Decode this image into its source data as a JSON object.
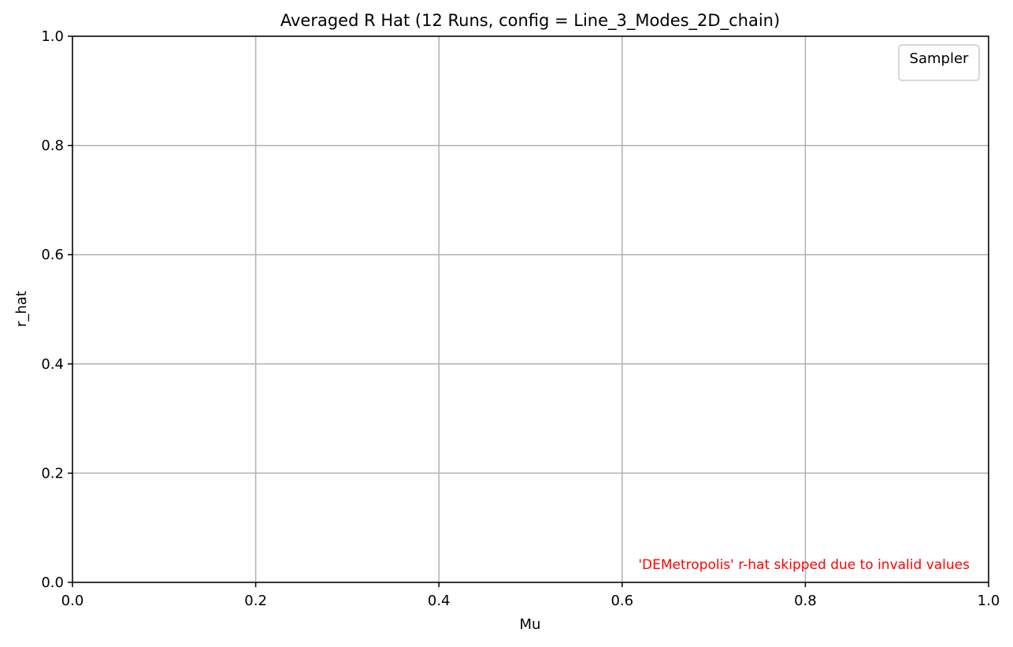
{
  "chart_data": {
    "type": "line",
    "title": "Averaged R Hat (12 Runs, config = Line_3_Modes_2D_chain)",
    "xlabel": "Mu",
    "ylabel": "r_hat",
    "xlim": [
      0.0,
      1.0
    ],
    "ylim": [
      0.0,
      1.0
    ],
    "xticks": [
      "0.0",
      "0.2",
      "0.4",
      "0.6",
      "0.8",
      "1.0"
    ],
    "yticks": [
      "0.0",
      "0.2",
      "0.4",
      "0.6",
      "0.8",
      "1.0"
    ],
    "xtick_values": [
      0.0,
      0.2,
      0.4,
      0.6,
      0.8,
      1.0
    ],
    "ytick_values": [
      0.0,
      0.2,
      0.4,
      0.6,
      0.8,
      1.0
    ],
    "grid": true,
    "legend": {
      "title": "Sampler",
      "location": "top-right",
      "entries": []
    },
    "series": [],
    "annotation": {
      "text": "'DEMetropolis' r-hat skipped due to invalid values",
      "color": "#ff0000",
      "location": "bottom-right"
    }
  }
}
